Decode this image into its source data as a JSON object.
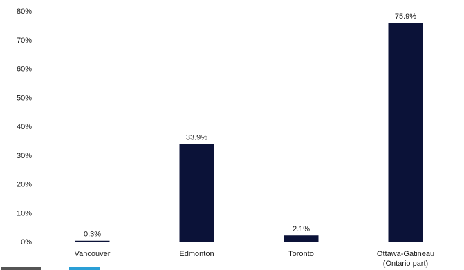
{
  "chart_data": {
    "type": "bar",
    "categories": [
      "Vancouver",
      "Edmonton",
      "Toronto",
      [
        "Ottawa-Gatineau",
        "(Ontario part)"
      ]
    ],
    "values": [
      0.3,
      33.9,
      2.1,
      75.9
    ],
    "value_labels": [
      "0.3%",
      "33.9%",
      "2.1%",
      "75.9%"
    ],
    "y_ticks": [
      "0%",
      "10%",
      "20%",
      "30%",
      "40%",
      "50%",
      "60%",
      "70%",
      "80%"
    ],
    "ylim": [
      0,
      80
    ],
    "bar_color": "#0b1238",
    "grid": false,
    "title": "",
    "xlabel": "",
    "ylabel": ""
  },
  "colors": {
    "source_accent": "#2a9fd6",
    "source_text": "#555555"
  }
}
